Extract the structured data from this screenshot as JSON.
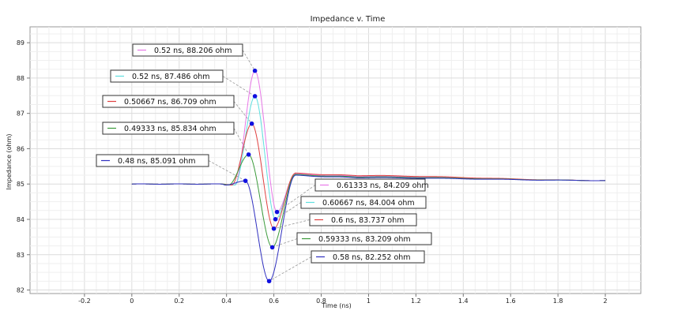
{
  "chart_data": {
    "type": "line",
    "title": "Impedance v. Time",
    "xlabel": "Time (ns)",
    "ylabel": "Impedance (ohm)",
    "xlim": [
      -0.43,
      2.15
    ],
    "ylim": [
      81.9,
      89.45
    ],
    "xticks": [
      "-0.2",
      "0",
      "0.2",
      "0.4",
      "0.6",
      "0.8",
      "1",
      "1.2",
      "1.4",
      "1.6",
      "1.8",
      "2"
    ],
    "yticks": [
      "82",
      "83",
      "84",
      "85",
      "86",
      "87",
      "88",
      "89"
    ],
    "grid": true,
    "series": [
      {
        "color": "#e879e8",
        "peak_t": 0.52,
        "peak_z": 88.206,
        "trough_t": 0.61333,
        "trough_z": 84.209,
        "settle": 85.22
      },
      {
        "color": "#5ee0e0",
        "peak_t": 0.52,
        "peak_z": 87.486,
        "trough_t": 0.60667,
        "trough_z": 84.004,
        "settle": 85.2
      },
      {
        "color": "#e04040",
        "peak_t": 0.50667,
        "peak_z": 86.709,
        "trough_t": 0.6,
        "trough_z": 83.737,
        "settle": 85.24
      },
      {
        "color": "#3a9a3a",
        "peak_t": 0.49333,
        "peak_z": 85.834,
        "trough_t": 0.59333,
        "trough_z": 83.209,
        "settle": 85.2
      },
      {
        "color": "#3030c0",
        "peak_t": 0.48,
        "peak_z": 85.091,
        "trough_t": 0.58,
        "trough_z": 82.252,
        "settle": 85.18
      }
    ],
    "annotations": [
      {
        "text": "0.52 ns, 88.206 ohm",
        "color": "#e879e8"
      },
      {
        "text": "0.52 ns, 87.486 ohm",
        "color": "#5ee0e0"
      },
      {
        "text": "0.50667 ns, 86.709 ohm",
        "color": "#e04040"
      },
      {
        "text": "0.49333 ns, 85.834 ohm",
        "color": "#3a9a3a"
      },
      {
        "text": "0.48 ns, 85.091 ohm",
        "color": "#3030c0"
      },
      {
        "text": "0.61333 ns, 84.209 ohm",
        "color": "#e879e8"
      },
      {
        "text": "0.60667 ns, 84.004 ohm",
        "color": "#5ee0e0"
      },
      {
        "text": "0.6 ns, 83.737 ohm",
        "color": "#e04040"
      },
      {
        "text": "0.59333 ns, 83.209 ohm",
        "color": "#3a9a3a"
      },
      {
        "text": "0.58 ns, 82.252 ohm",
        "color": "#3030c0"
      }
    ]
  }
}
